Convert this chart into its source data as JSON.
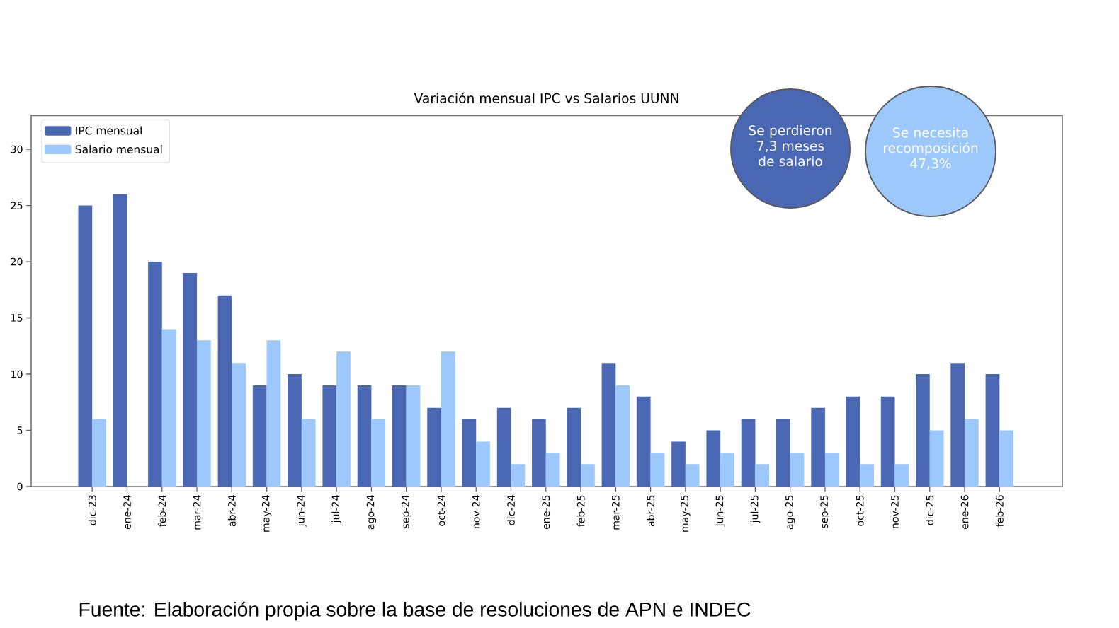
{
  "chart_data": {
    "type": "bar",
    "title": "Variación mensual IPC vs Salarios UUNN",
    "categories": [
      "dic-23",
      "ene-24",
      "feb-24",
      "mar-24",
      "abr-24",
      "may-24",
      "jun-24",
      "jul-24",
      "ago-24",
      "sep-24",
      "oct-24",
      "nov-24",
      "dic-24",
      "ene-25",
      "feb-25",
      "mar-25",
      "abr-25",
      "may-25",
      "jun-25",
      "jul-25",
      "ago-25",
      "sep-25",
      "oct-25",
      "nov-25",
      "dic-25",
      "ene-26",
      "feb-26"
    ],
    "series": [
      {
        "name": "IPC mensual",
        "color": "#4a67b4",
        "values": [
          25,
          26,
          20,
          19,
          17,
          9,
          10,
          9,
          9,
          9,
          7,
          6,
          7,
          6,
          7,
          11,
          8,
          4,
          5,
          6,
          6,
          7,
          8,
          8,
          10,
          11,
          10
        ]
      },
      {
        "name": "Salario mensual",
        "color": "#9dc8fb",
        "values": [
          6,
          null,
          14,
          13,
          11,
          13,
          6,
          12,
          6,
          9,
          12,
          4,
          2,
          3,
          2,
          9,
          3,
          2,
          3,
          2,
          3,
          3,
          2,
          2,
          5,
          6,
          5
        ]
      }
    ],
    "ylim": [
      0,
      33
    ],
    "yticks": [
      0,
      5,
      10,
      15,
      20,
      25,
      30
    ],
    "legend": "top left",
    "annotations": [
      "Se perdieron 7,3 meses de salario",
      "Se necesita recomposición 47,3%",
      "Fuente: Elaboración propia sobre la base de resoluciones de APN e INDEC"
    ]
  }
}
